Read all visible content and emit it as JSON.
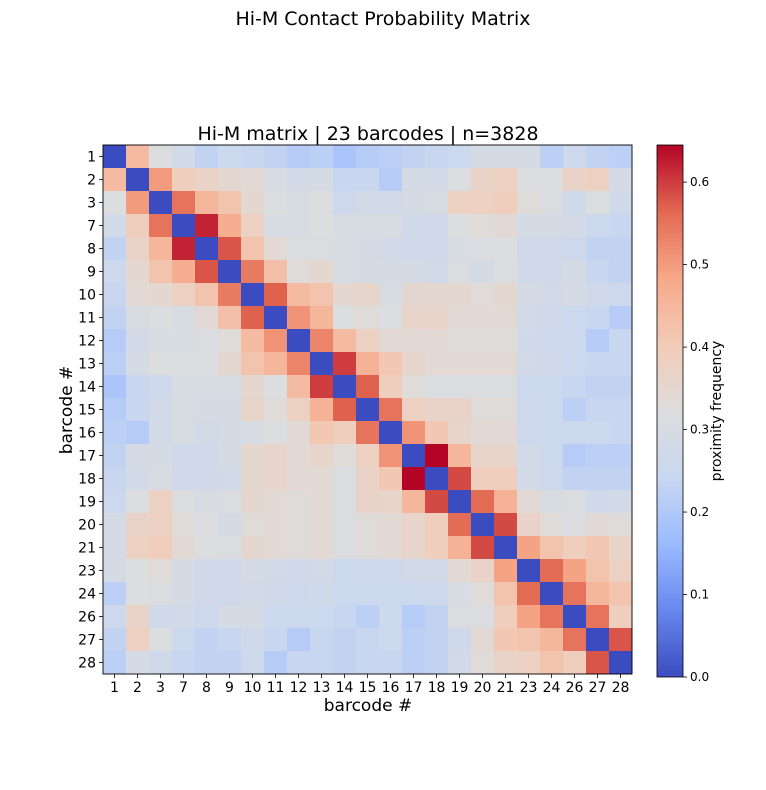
{
  "figure": {
    "suptitle": "Hi-M Contact Probability Matrix"
  },
  "chart_data": {
    "type": "heatmap",
    "title": "Hi-M matrix | 23 barcodes | n=3828",
    "xlabel": "barcode #",
    "ylabel": "barcode #",
    "colorbar_label": "proximity frequency",
    "colormap": "coolwarm",
    "colormap_stops": [
      "#3b4cc0",
      "#6788ee",
      "#9abbff",
      "#c9d7f0",
      "#dddddd",
      "#f2cbb7",
      "#f7a889",
      "#e26952",
      "#b40426"
    ],
    "vmin": 0.0,
    "vmax": 0.645,
    "colorbar_ticks": [
      "0.0",
      "0.1",
      "0.2",
      "0.3",
      "0.4",
      "0.5",
      "0.6"
    ],
    "barcodes": [
      "1",
      "2",
      "3",
      "7",
      "8",
      "9",
      "10",
      "11",
      "12",
      "13",
      "14",
      "15",
      "16",
      "17",
      "18",
      "19",
      "20",
      "21",
      "23",
      "24",
      "26",
      "27",
      "28"
    ],
    "matrix": [
      [
        0.0,
        0.44,
        0.32,
        0.28,
        0.23,
        0.25,
        0.24,
        0.23,
        0.21,
        0.22,
        0.19,
        0.21,
        0.22,
        0.23,
        0.24,
        0.25,
        0.29,
        0.29,
        0.29,
        0.22,
        0.26,
        0.23,
        0.22
      ],
      [
        0.44,
        0.0,
        0.5,
        0.39,
        0.37,
        0.35,
        0.34,
        0.3,
        0.28,
        0.29,
        0.24,
        0.24,
        0.21,
        0.29,
        0.28,
        0.32,
        0.37,
        0.38,
        0.32,
        0.32,
        0.37,
        0.38,
        0.29
      ],
      [
        0.32,
        0.5,
        0.0,
        0.55,
        0.45,
        0.42,
        0.35,
        0.32,
        0.3,
        0.32,
        0.26,
        0.28,
        0.28,
        0.29,
        0.3,
        0.38,
        0.38,
        0.39,
        0.33,
        0.31,
        0.27,
        0.32,
        0.27
      ],
      [
        0.28,
        0.39,
        0.55,
        0.0,
        0.62,
        0.47,
        0.38,
        0.3,
        0.3,
        0.32,
        0.3,
        0.3,
        0.3,
        0.27,
        0.27,
        0.32,
        0.33,
        0.34,
        0.29,
        0.29,
        0.28,
        0.25,
        0.24
      ],
      [
        0.23,
        0.37,
        0.45,
        0.62,
        0.0,
        0.58,
        0.42,
        0.34,
        0.31,
        0.31,
        0.3,
        0.29,
        0.28,
        0.27,
        0.27,
        0.3,
        0.31,
        0.32,
        0.27,
        0.27,
        0.26,
        0.23,
        0.23
      ],
      [
        0.25,
        0.35,
        0.42,
        0.47,
        0.58,
        0.0,
        0.54,
        0.43,
        0.33,
        0.35,
        0.3,
        0.29,
        0.29,
        0.29,
        0.28,
        0.31,
        0.29,
        0.31,
        0.27,
        0.27,
        0.29,
        0.24,
        0.23
      ],
      [
        0.24,
        0.34,
        0.35,
        0.38,
        0.42,
        0.54,
        0.0,
        0.57,
        0.44,
        0.42,
        0.35,
        0.36,
        0.3,
        0.35,
        0.35,
        0.35,
        0.33,
        0.35,
        0.29,
        0.28,
        0.29,
        0.27,
        0.26
      ],
      [
        0.23,
        0.3,
        0.32,
        0.3,
        0.34,
        0.43,
        0.57,
        0.0,
        0.51,
        0.45,
        0.32,
        0.33,
        0.32,
        0.36,
        0.36,
        0.34,
        0.34,
        0.34,
        0.28,
        0.27,
        0.25,
        0.24,
        0.21
      ],
      [
        0.21,
        0.28,
        0.3,
        0.3,
        0.31,
        0.33,
        0.44,
        0.51,
        0.0,
        0.53,
        0.44,
        0.38,
        0.34,
        0.34,
        0.34,
        0.33,
        0.33,
        0.33,
        0.27,
        0.26,
        0.25,
        0.21,
        0.24
      ],
      [
        0.22,
        0.29,
        0.32,
        0.32,
        0.31,
        0.35,
        0.42,
        0.45,
        0.53,
        0.0,
        0.6,
        0.46,
        0.41,
        0.36,
        0.34,
        0.34,
        0.34,
        0.34,
        0.28,
        0.27,
        0.25,
        0.24,
        0.24
      ],
      [
        0.19,
        0.24,
        0.26,
        0.3,
        0.3,
        0.3,
        0.35,
        0.32,
        0.44,
        0.6,
        0.0,
        0.57,
        0.39,
        0.33,
        0.31,
        0.31,
        0.31,
        0.31,
        0.25,
        0.25,
        0.24,
        0.23,
        0.23
      ],
      [
        0.21,
        0.24,
        0.28,
        0.3,
        0.29,
        0.29,
        0.36,
        0.33,
        0.38,
        0.46,
        0.57,
        0.0,
        0.55,
        0.38,
        0.37,
        0.37,
        0.33,
        0.33,
        0.26,
        0.25,
        0.22,
        0.24,
        0.24
      ],
      [
        0.22,
        0.21,
        0.28,
        0.3,
        0.28,
        0.29,
        0.3,
        0.32,
        0.34,
        0.41,
        0.39,
        0.55,
        0.0,
        0.51,
        0.41,
        0.36,
        0.34,
        0.34,
        0.26,
        0.25,
        0.25,
        0.25,
        0.24
      ],
      [
        0.23,
        0.29,
        0.29,
        0.27,
        0.27,
        0.29,
        0.35,
        0.36,
        0.34,
        0.36,
        0.33,
        0.38,
        0.51,
        0.0,
        0.645,
        0.45,
        0.36,
        0.36,
        0.28,
        0.25,
        0.21,
        0.22,
        0.22
      ],
      [
        0.24,
        0.28,
        0.3,
        0.27,
        0.27,
        0.28,
        0.35,
        0.36,
        0.34,
        0.34,
        0.31,
        0.37,
        0.41,
        0.645,
        0.0,
        0.59,
        0.39,
        0.39,
        0.28,
        0.26,
        0.23,
        0.23,
        0.23
      ],
      [
        0.25,
        0.32,
        0.38,
        0.32,
        0.3,
        0.31,
        0.35,
        0.34,
        0.33,
        0.34,
        0.31,
        0.37,
        0.36,
        0.45,
        0.59,
        0.0,
        0.56,
        0.46,
        0.34,
        0.3,
        0.31,
        0.27,
        0.28
      ],
      [
        0.29,
        0.37,
        0.38,
        0.33,
        0.31,
        0.29,
        0.33,
        0.34,
        0.33,
        0.34,
        0.31,
        0.33,
        0.34,
        0.36,
        0.39,
        0.56,
        0.0,
        0.59,
        0.37,
        0.33,
        0.31,
        0.34,
        0.33
      ],
      [
        0.29,
        0.38,
        0.39,
        0.34,
        0.32,
        0.31,
        0.35,
        0.34,
        0.33,
        0.34,
        0.31,
        0.33,
        0.34,
        0.36,
        0.39,
        0.46,
        0.59,
        0.0,
        0.49,
        0.42,
        0.39,
        0.41,
        0.37
      ],
      [
        0.29,
        0.32,
        0.33,
        0.29,
        0.27,
        0.27,
        0.29,
        0.28,
        0.27,
        0.28,
        0.25,
        0.26,
        0.26,
        0.28,
        0.28,
        0.34,
        0.37,
        0.49,
        0.0,
        0.56,
        0.49,
        0.42,
        0.38
      ],
      [
        0.22,
        0.32,
        0.31,
        0.29,
        0.27,
        0.27,
        0.28,
        0.27,
        0.26,
        0.27,
        0.25,
        0.25,
        0.25,
        0.25,
        0.26,
        0.3,
        0.33,
        0.42,
        0.56,
        0.0,
        0.55,
        0.45,
        0.42
      ],
      [
        0.26,
        0.37,
        0.27,
        0.28,
        0.26,
        0.29,
        0.29,
        0.25,
        0.25,
        0.25,
        0.24,
        0.22,
        0.25,
        0.21,
        0.23,
        0.31,
        0.31,
        0.39,
        0.49,
        0.55,
        0.0,
        0.55,
        0.39
      ],
      [
        0.23,
        0.38,
        0.32,
        0.25,
        0.23,
        0.24,
        0.27,
        0.24,
        0.21,
        0.24,
        0.23,
        0.24,
        0.25,
        0.22,
        0.23,
        0.27,
        0.34,
        0.41,
        0.42,
        0.45,
        0.55,
        0.0,
        0.58
      ],
      [
        0.22,
        0.29,
        0.27,
        0.24,
        0.23,
        0.23,
        0.26,
        0.21,
        0.24,
        0.24,
        0.23,
        0.24,
        0.24,
        0.22,
        0.23,
        0.28,
        0.33,
        0.37,
        0.38,
        0.42,
        0.39,
        0.58,
        0.0
      ]
    ]
  }
}
